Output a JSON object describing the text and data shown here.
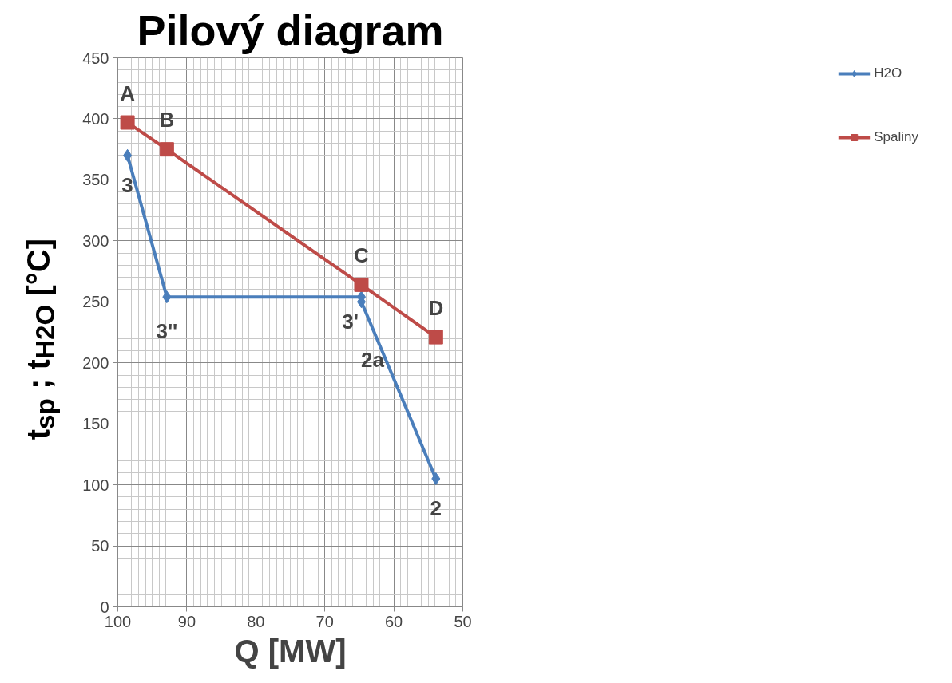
{
  "chart_data": {
    "type": "line",
    "title": "Pilový diagram",
    "xlabel": "Q [MW]",
    "ylabel": "t$_{sp}$ ; t$_{H2O}$ [°C]",
    "xlim": [
      100,
      50
    ],
    "xticks": [
      100,
      90,
      80,
      70,
      60,
      50
    ],
    "ylim": [
      0,
      450
    ],
    "yticks": [
      0,
      50,
      100,
      150,
      200,
      250,
      300,
      350,
      400,
      450
    ],
    "grid": true,
    "legend": "right",
    "series": [
      {
        "name": "H2O",
        "color": "#4a7ebb",
        "marker": "diamond",
        "x": [
          98.6,
          92.9,
          64.7,
          64.7,
          53.9
        ],
        "values": [
          370,
          254,
          254,
          250,
          105
        ]
      },
      {
        "name": "Spaliny",
        "color": "#be4b48",
        "marker": "square",
        "x": [
          98.6,
          92.9,
          64.7,
          53.9
        ],
        "values": [
          397,
          375,
          264,
          221
        ]
      }
    ],
    "annotations": [
      {
        "text": "A",
        "x": 98.6,
        "y": 397
      },
      {
        "text": "B",
        "x": 92.9,
        "y": 375
      },
      {
        "text": "C",
        "x": 64.7,
        "y": 264
      },
      {
        "text": "D",
        "x": 53.9,
        "y": 221
      },
      {
        "text": "3",
        "x": 98.6,
        "y": 370
      },
      {
        "text": "3''",
        "x": 92.9,
        "y": 254
      },
      {
        "text": "3'",
        "x": 64.7,
        "y": 254
      },
      {
        "text": "2a",
        "x": 64.7,
        "y": 250
      },
      {
        "text": "2",
        "x": 53.9,
        "y": 105
      }
    ]
  }
}
